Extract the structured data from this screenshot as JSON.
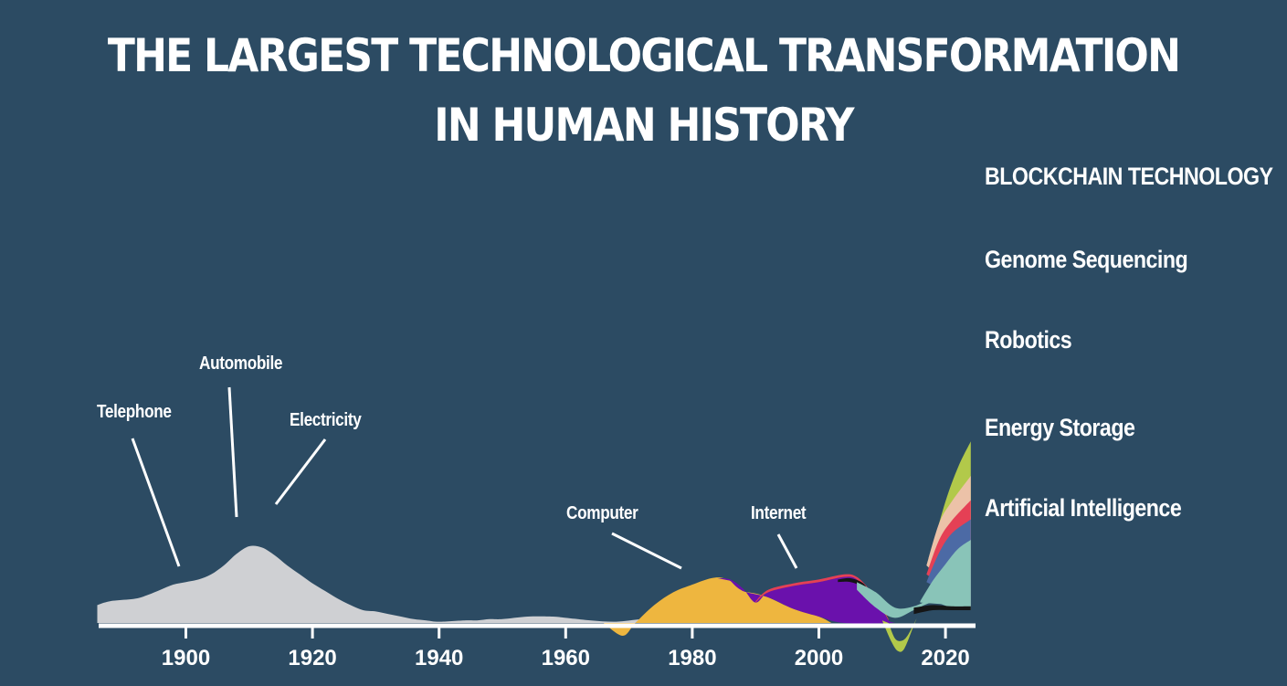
{
  "title_lines": [
    "THE LARGEST TECHNOLOGICAL TRANSFORMATION",
    "IN HUMAN HISTORY"
  ],
  "chart_data": {
    "type": "area",
    "title": "THE LARGEST TECHNOLOGICAL TRANSFORMATION IN HUMAN HISTORY",
    "xlabel": "",
    "ylabel": "",
    "x_ticks": [
      1900,
      1920,
      1940,
      1960,
      1980,
      2000,
      2020
    ],
    "xlim": [
      1886,
      2025
    ],
    "grid": false,
    "legend_position": "right",
    "series": [
      {
        "name": "",
        "color": "#cfd0d3",
        "points": [
          [
            1886,
            0.14
          ],
          [
            1888,
            0.17
          ],
          [
            1892,
            0.19
          ],
          [
            1894,
            0.22
          ],
          [
            1896,
            0.26
          ],
          [
            1898,
            0.3
          ],
          [
            1900,
            0.32
          ],
          [
            1902,
            0.34
          ],
          [
            1904,
            0.38
          ],
          [
            1906,
            0.45
          ],
          [
            1908,
            0.54
          ],
          [
            1910,
            0.6
          ],
          [
            1912,
            0.59
          ],
          [
            1914,
            0.53
          ],
          [
            1916,
            0.45
          ],
          [
            1918,
            0.38
          ],
          [
            1920,
            0.31
          ],
          [
            1922,
            0.25
          ],
          [
            1924,
            0.19
          ],
          [
            1926,
            0.14
          ],
          [
            1928,
            0.1
          ],
          [
            1930,
            0.09
          ],
          [
            1932,
            0.07
          ],
          [
            1934,
            0.05
          ],
          [
            1936,
            0.03
          ],
          [
            1938,
            0.02
          ],
          [
            1940,
            0.01
          ],
          [
            1944,
            0.02
          ],
          [
            1946,
            0.02
          ],
          [
            1948,
            0.03
          ],
          [
            1950,
            0.03
          ],
          [
            1954,
            0.05
          ],
          [
            1958,
            0.05
          ],
          [
            1960,
            0.04
          ],
          [
            1964,
            0.02
          ],
          [
            1968,
            0.01
          ],
          [
            1972,
            0.03
          ],
          [
            1976,
            0.04
          ],
          [
            1980,
            0.05
          ],
          [
            1984,
            0.05
          ],
          [
            1988,
            0.04
          ],
          [
            1992,
            0.03
          ],
          [
            1996,
            0.01
          ],
          [
            1998,
            0.0
          ]
        ]
      },
      {
        "name": "",
        "color": "#eeb63f",
        "points": [
          [
            1966,
            0.0
          ],
          [
            1969,
            -0.1
          ],
          [
            1971,
            0.0
          ],
          [
            1974,
            0.14
          ],
          [
            1977,
            0.24
          ],
          [
            1980,
            0.3
          ],
          [
            1983,
            0.35
          ],
          [
            1985,
            0.35
          ],
          [
            1987,
            0.3
          ],
          [
            1988,
            0.25
          ],
          [
            1990,
            0.23
          ],
          [
            1992,
            0.2
          ],
          [
            1996,
            0.11
          ],
          [
            2000,
            0.05
          ],
          [
            2002,
            0.0
          ]
        ]
      },
      {
        "name": "",
        "color": "#6a11ac",
        "points": [
          [
            1984,
            0.35
          ],
          [
            1986,
            0.34
          ],
          [
            1988,
            0.27
          ],
          [
            1990,
            0.16
          ],
          [
            1992,
            0.24
          ],
          [
            1996,
            0.29
          ],
          [
            2000,
            0.32
          ],
          [
            2004,
            0.36
          ],
          [
            2006,
            0.34
          ],
          [
            2008,
            0.21
          ],
          [
            2010,
            0.1
          ],
          [
            2011,
            0.02
          ],
          [
            2012,
            0.0
          ]
        ]
      },
      {
        "name": "Artificial Intelligence",
        "color": "#89c4b8",
        "points": [
          [
            2007,
            0.3
          ],
          [
            2010,
            0.21
          ],
          [
            2013,
            0.13
          ],
          [
            2016,
            0.17
          ],
          [
            2018,
            0.33
          ],
          [
            2020,
            0.46
          ],
          [
            2022,
            0.58
          ],
          [
            2024,
            0.65
          ]
        ]
      },
      {
        "name": "Energy Storage",
        "color": "#4c6aa5",
        "points": [
          [
            2017,
            0.32
          ],
          [
            2019,
            0.55
          ],
          [
            2021,
            0.7
          ],
          [
            2024,
            0.81
          ]
        ]
      },
      {
        "name": "Robotics",
        "color": "#e54055",
        "points": [
          [
            2017,
            0.38
          ],
          [
            2019,
            0.65
          ],
          [
            2021,
            0.8
          ],
          [
            2024,
            0.96
          ]
        ]
      },
      {
        "name": "Genome Sequencing",
        "color": "#ecc2a8",
        "points": [
          [
            2017,
            0.45
          ],
          [
            2019,
            0.78
          ],
          [
            2021,
            0.95
          ],
          [
            2024,
            1.15
          ]
        ]
      },
      {
        "name": "BLOCKCHAIN TECHNOLOGY",
        "color": "#b2c94a",
        "points": [
          [
            2010,
            0.0
          ],
          [
            2012,
            -0.2
          ],
          [
            2013,
            -0.22
          ],
          [
            2015,
            0.0
          ],
          [
            2018,
            0.6
          ],
          [
            2020,
            0.95
          ],
          [
            2022,
            1.22
          ],
          [
            2024,
            1.42
          ]
        ]
      }
    ],
    "annotations": [
      {
        "text": "Telephone",
        "year": 1898
      },
      {
        "text": "Automobile",
        "year": 1908
      },
      {
        "text": "Electricity",
        "year": 1914
      },
      {
        "text": "Computer",
        "year": 1983
      },
      {
        "text": "Internet",
        "year": 1997
      }
    ]
  },
  "legend": [
    {
      "label": "BLOCKCHAIN TECHNOLOGY",
      "color": "#b2c94a"
    },
    {
      "label": "Genome Sequencing",
      "color": "#ecc2a8"
    },
    {
      "label": "Robotics",
      "color": "#e54055"
    },
    {
      "label": "Energy Storage",
      "color": "#4c6aa5"
    },
    {
      "label": "Artificial Intelligence",
      "color": "#89c4b8"
    }
  ],
  "colors": {
    "background": "#2c4b63",
    "axis": "#ffffff",
    "text": "#ffffff"
  }
}
